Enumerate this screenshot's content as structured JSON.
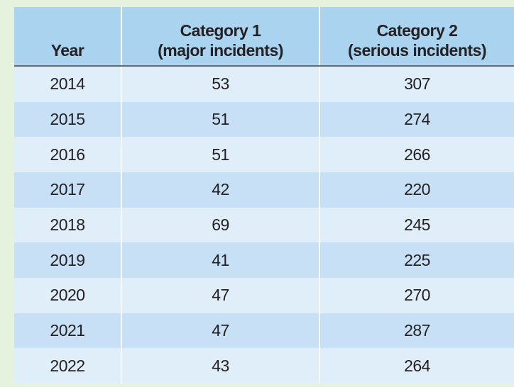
{
  "header": {
    "cells": [
      {
        "line1": "Year",
        "line2": ""
      },
      {
        "line1": "Category 1",
        "line2": "(major incidents)"
      },
      {
        "line1": "Category 2",
        "line2": "(serious incidents)"
      }
    ]
  },
  "chart_data": {
    "type": "table",
    "title": "",
    "columns": [
      "Year",
      "Category 1 (major incidents)",
      "Category 2 (serious incidents)"
    ],
    "rows": [
      [
        "2014",
        "53",
        "307"
      ],
      [
        "2015",
        "51",
        "274"
      ],
      [
        "2016",
        "51",
        "266"
      ],
      [
        "2017",
        "42",
        "220"
      ],
      [
        "2018",
        "69",
        "245"
      ],
      [
        "2019",
        "41",
        "225"
      ],
      [
        "2020",
        "47",
        "270"
      ],
      [
        "2021",
        "47",
        "287"
      ],
      [
        "2022",
        "43",
        "264"
      ]
    ]
  },
  "colors": {
    "page_background": "#e4f2de",
    "header_background": "#aad3ef",
    "row_light": "#e0eef9",
    "row_dark": "#c7e0f5",
    "column_divider": "#f6fafd",
    "header_rule": "#66686c",
    "text": "#242124"
  }
}
